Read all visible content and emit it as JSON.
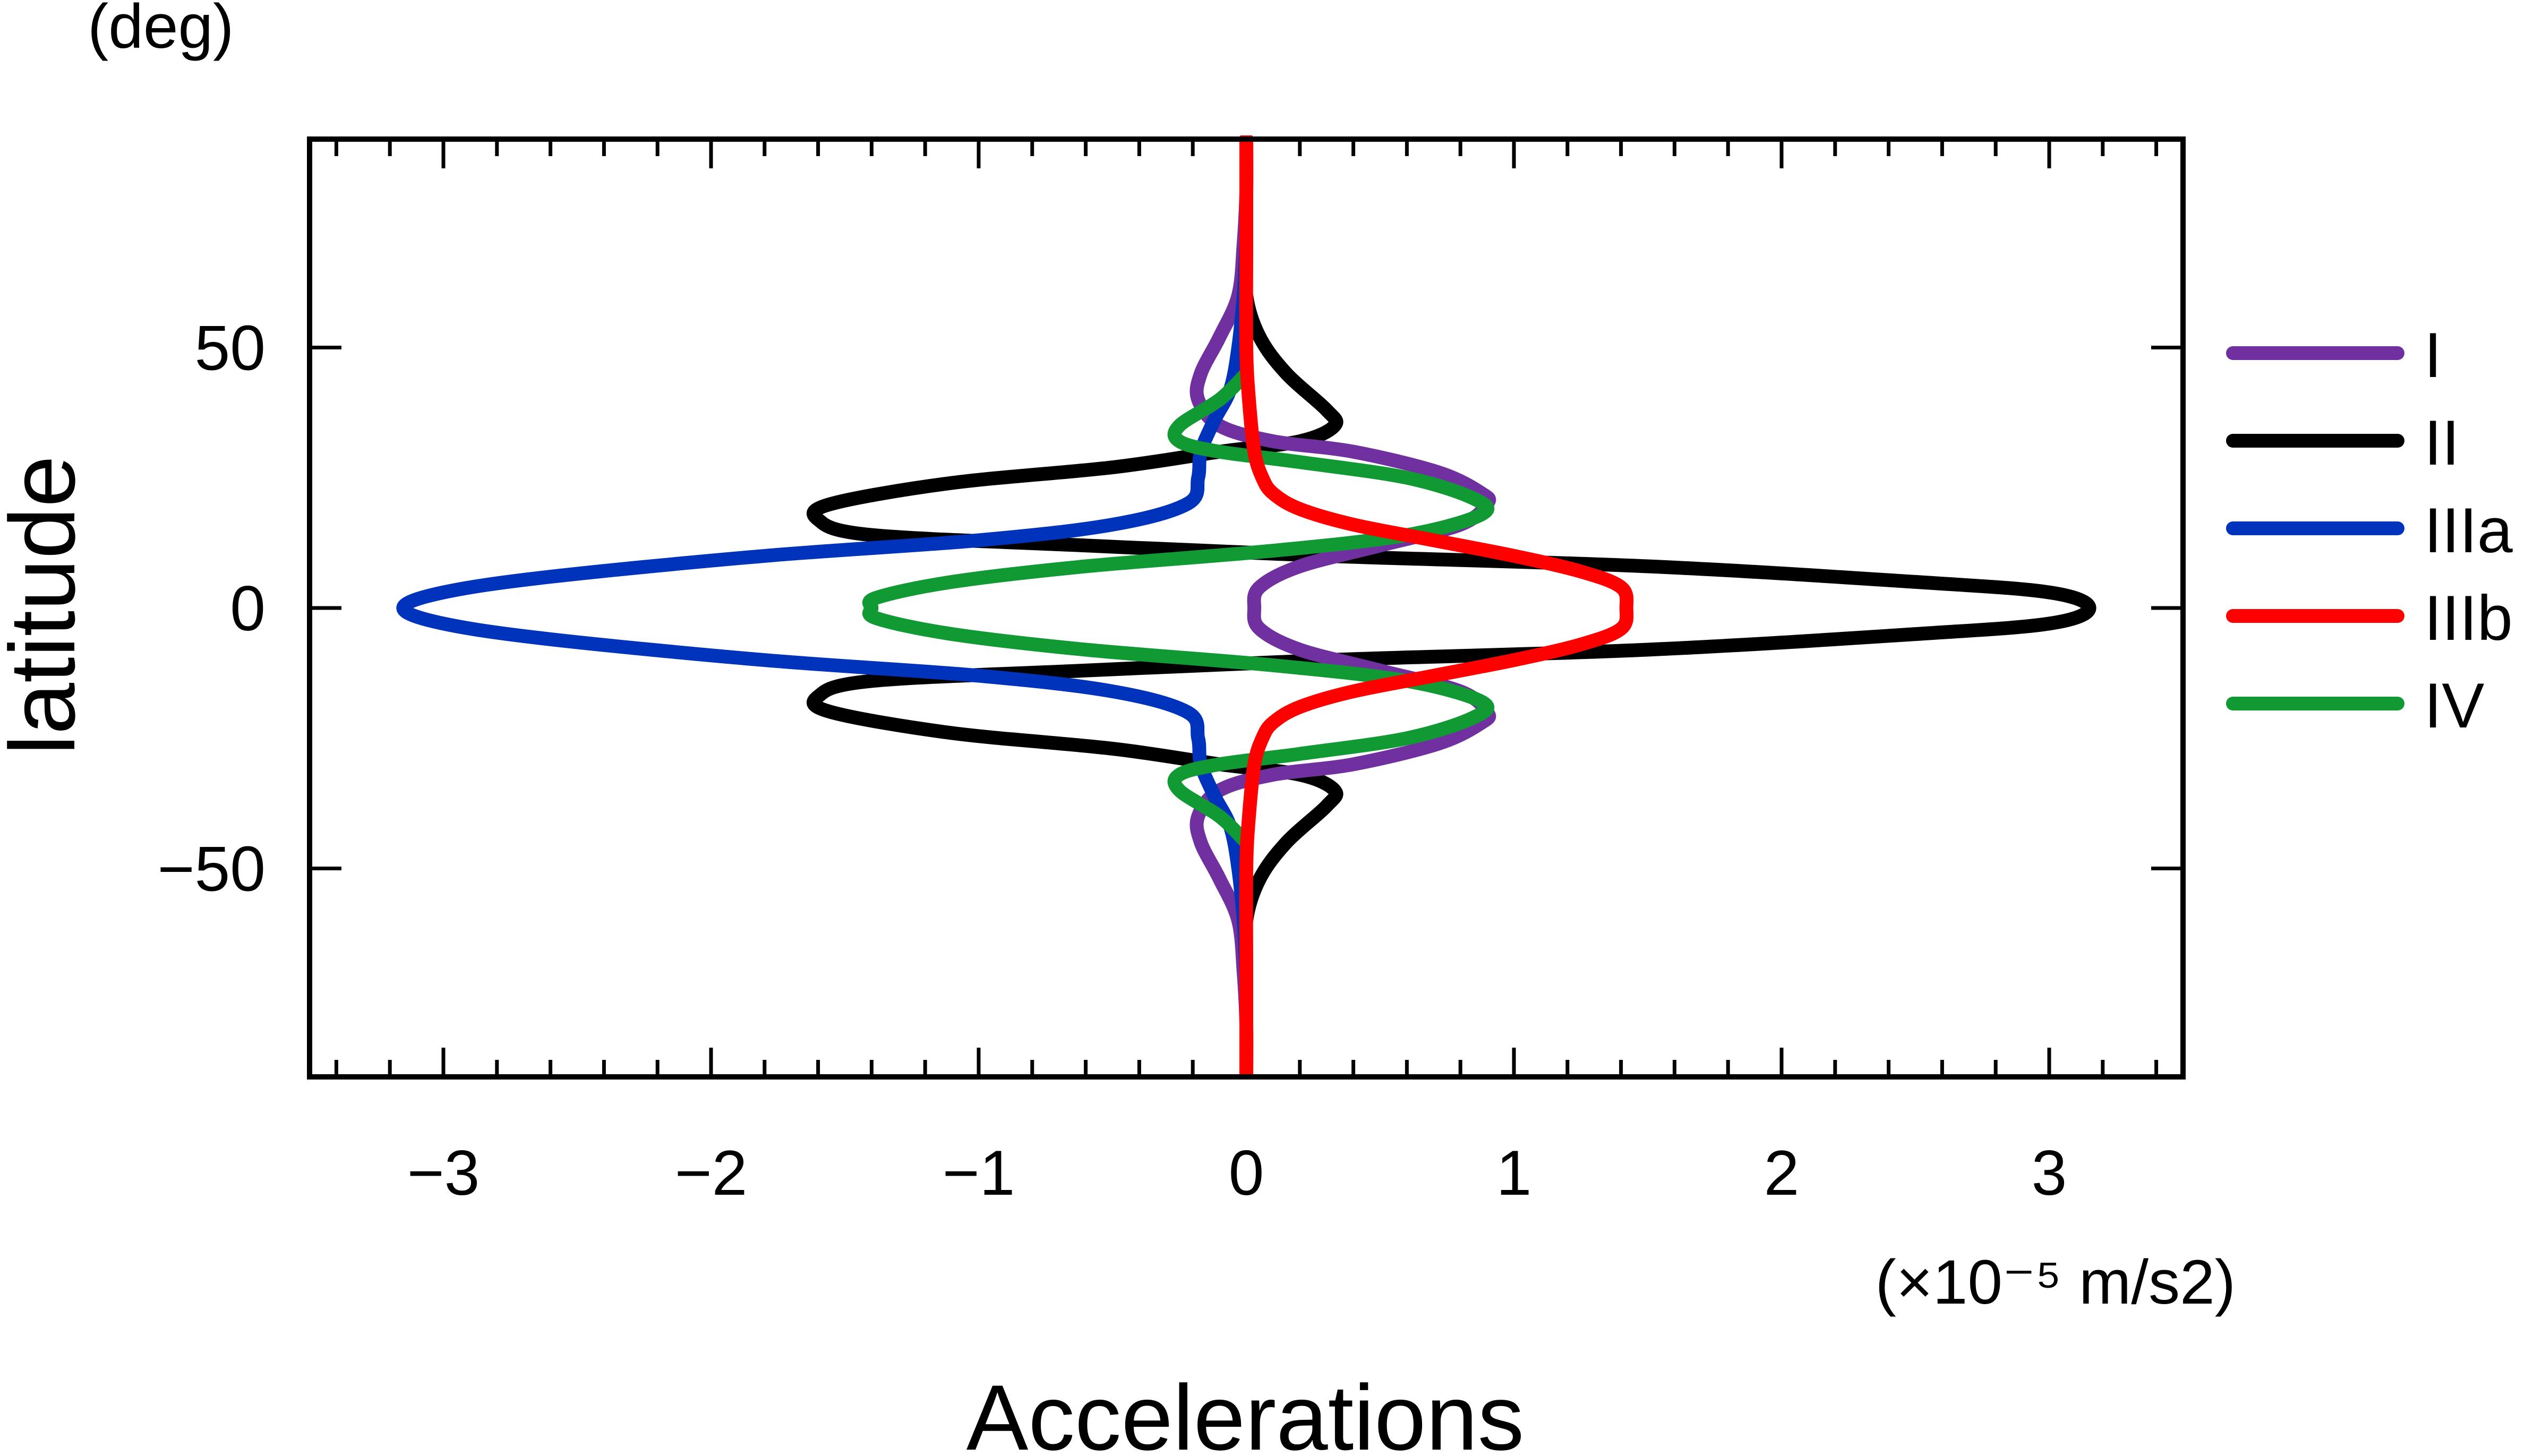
{
  "chart_data": {
    "type": "line",
    "title": "",
    "xlabel": "Accelerations",
    "ylabel": "latitude",
    "x_unit_label": "(×10⁻⁵ m/s2)",
    "y_unit_label": "(deg)",
    "xlim": [
      -3.5,
      3.5
    ],
    "ylim": [
      -90,
      90
    ],
    "x_ticks": [
      -3,
      -2,
      -1,
      0,
      1,
      2,
      3
    ],
    "x_tick_labels": [
      "−3",
      "−2",
      "−1",
      "0",
      "1",
      "2",
      "3"
    ],
    "y_ticks": [
      -50,
      0,
      50
    ],
    "y_tick_labels": [
      "−50",
      "0",
      "50"
    ],
    "grid": false,
    "legend_position": "right",
    "series": [
      {
        "name": "I",
        "color": "#7030a0",
        "points": [
          [
            0,
            90
          ],
          [
            0,
            80
          ],
          [
            -0.01,
            70
          ],
          [
            -0.03,
            60
          ],
          [
            -0.1,
            52
          ],
          [
            -0.17,
            45
          ],
          [
            -0.18,
            40
          ],
          [
            -0.1,
            35
          ],
          [
            0.1,
            32
          ],
          [
            0.4,
            30
          ],
          [
            0.72,
            26
          ],
          [
            0.88,
            22
          ],
          [
            0.9,
            20
          ],
          [
            0.8,
            16
          ],
          [
            0.5,
            12
          ],
          [
            0.2,
            8
          ],
          [
            0.05,
            4
          ],
          [
            0.03,
            0
          ],
          [
            0.05,
            -4
          ],
          [
            0.2,
            -8
          ],
          [
            0.5,
            -12
          ],
          [
            0.8,
            -16
          ],
          [
            0.9,
            -20
          ],
          [
            0.88,
            -22
          ],
          [
            0.72,
            -26
          ],
          [
            0.4,
            -30
          ],
          [
            0.1,
            -32
          ],
          [
            -0.1,
            -35
          ],
          [
            -0.18,
            -40
          ],
          [
            -0.17,
            -45
          ],
          [
            -0.1,
            -52
          ],
          [
            -0.03,
            -60
          ],
          [
            -0.01,
            -70
          ],
          [
            0,
            -80
          ],
          [
            0,
            -90
          ]
        ]
      },
      {
        "name": "II",
        "color": "#000000",
        "points": [
          [
            0,
            90
          ],
          [
            0,
            70
          ],
          [
            0,
            60
          ],
          [
            0.05,
            52
          ],
          [
            0.15,
            45
          ],
          [
            0.3,
            38
          ],
          [
            0.33,
            35
          ],
          [
            0.2,
            32
          ],
          [
            -0.1,
            30
          ],
          [
            -0.5,
            27
          ],
          [
            -1.1,
            24
          ],
          [
            -1.55,
            20
          ],
          [
            -1.6,
            17
          ],
          [
            -1.4,
            14
          ],
          [
            -0.6,
            12
          ],
          [
            0.3,
            10
          ],
          [
            1.5,
            8
          ],
          [
            2.5,
            5
          ],
          [
            3.0,
            3
          ],
          [
            3.15,
            0
          ],
          [
            3.0,
            -3
          ],
          [
            2.5,
            -5
          ],
          [
            1.5,
            -8
          ],
          [
            0.3,
            -10
          ],
          [
            -0.6,
            -12
          ],
          [
            -1.4,
            -14
          ],
          [
            -1.6,
            -17
          ],
          [
            -1.55,
            -20
          ],
          [
            -1.1,
            -24
          ],
          [
            -0.5,
            -27
          ],
          [
            -0.1,
            -30
          ],
          [
            0.2,
            -32
          ],
          [
            0.33,
            -35
          ],
          [
            0.3,
            -38
          ],
          [
            0.15,
            -45
          ],
          [
            0.05,
            -52
          ],
          [
            0,
            -60
          ],
          [
            0,
            -70
          ],
          [
            0,
            -90
          ]
        ]
      },
      {
        "name": "IIIa",
        "color": "#0033bb",
        "points": [
          [
            0,
            70
          ],
          [
            -0.01,
            60
          ],
          [
            -0.03,
            50
          ],
          [
            -0.06,
            42
          ],
          [
            -0.12,
            36
          ],
          [
            -0.17,
            30
          ],
          [
            -0.18,
            25
          ],
          [
            -0.22,
            20
          ],
          [
            -0.5,
            16
          ],
          [
            -1.0,
            13
          ],
          [
            -1.8,
            10
          ],
          [
            -2.6,
            6
          ],
          [
            -3.0,
            3
          ],
          [
            -3.15,
            0
          ],
          [
            -3.0,
            -3
          ],
          [
            -2.6,
            -6
          ],
          [
            -1.8,
            -10
          ],
          [
            -1.0,
            -13
          ],
          [
            -0.5,
            -16
          ],
          [
            -0.22,
            -20
          ],
          [
            -0.18,
            -25
          ],
          [
            -0.17,
            -30
          ],
          [
            -0.12,
            -36
          ],
          [
            -0.06,
            -42
          ],
          [
            -0.03,
            -50
          ],
          [
            -0.01,
            -60
          ],
          [
            0,
            -70
          ]
        ]
      },
      {
        "name": "IIIb",
        "color": "#ff0000",
        "points": [
          [
            0,
            90
          ],
          [
            0,
            70
          ],
          [
            0,
            50
          ],
          [
            0.01,
            40
          ],
          [
            0.03,
            30
          ],
          [
            0.06,
            25
          ],
          [
            0.1,
            22
          ],
          [
            0.2,
            19
          ],
          [
            0.4,
            16
          ],
          [
            0.7,
            13
          ],
          [
            1.0,
            10
          ],
          [
            1.25,
            7
          ],
          [
            1.4,
            4
          ],
          [
            1.42,
            0
          ],
          [
            1.4,
            -4
          ],
          [
            1.25,
            -7
          ],
          [
            1.0,
            -10
          ],
          [
            0.7,
            -13
          ],
          [
            0.4,
            -16
          ],
          [
            0.2,
            -19
          ],
          [
            0.1,
            -22
          ],
          [
            0.06,
            -25
          ],
          [
            0.03,
            -30
          ],
          [
            0.01,
            -40
          ],
          [
            0,
            -50
          ],
          [
            0,
            -70
          ],
          [
            0,
            -90
          ]
        ]
      },
      {
        "name": "IV",
        "color": "#119933",
        "points": [
          [
            0,
            45
          ],
          [
            -0.1,
            40
          ],
          [
            -0.25,
            35
          ],
          [
            -0.25,
            32
          ],
          [
            -0.1,
            30
          ],
          [
            0.2,
            28
          ],
          [
            0.6,
            25
          ],
          [
            0.85,
            21
          ],
          [
            0.88,
            18
          ],
          [
            0.6,
            14
          ],
          [
            0.1,
            11
          ],
          [
            -0.6,
            8
          ],
          [
            -1.1,
            5
          ],
          [
            -1.38,
            2
          ],
          [
            -1.4,
            0
          ],
          [
            -1.38,
            -2
          ],
          [
            -1.1,
            -5
          ],
          [
            -0.6,
            -8
          ],
          [
            0.1,
            -11
          ],
          [
            0.6,
            -14
          ],
          [
            0.88,
            -18
          ],
          [
            0.85,
            -21
          ],
          [
            0.6,
            -25
          ],
          [
            0.2,
            -28
          ],
          [
            -0.1,
            -30
          ],
          [
            -0.25,
            -32
          ],
          [
            -0.25,
            -35
          ],
          [
            -0.1,
            -40
          ],
          [
            0,
            -45
          ]
        ]
      }
    ]
  }
}
